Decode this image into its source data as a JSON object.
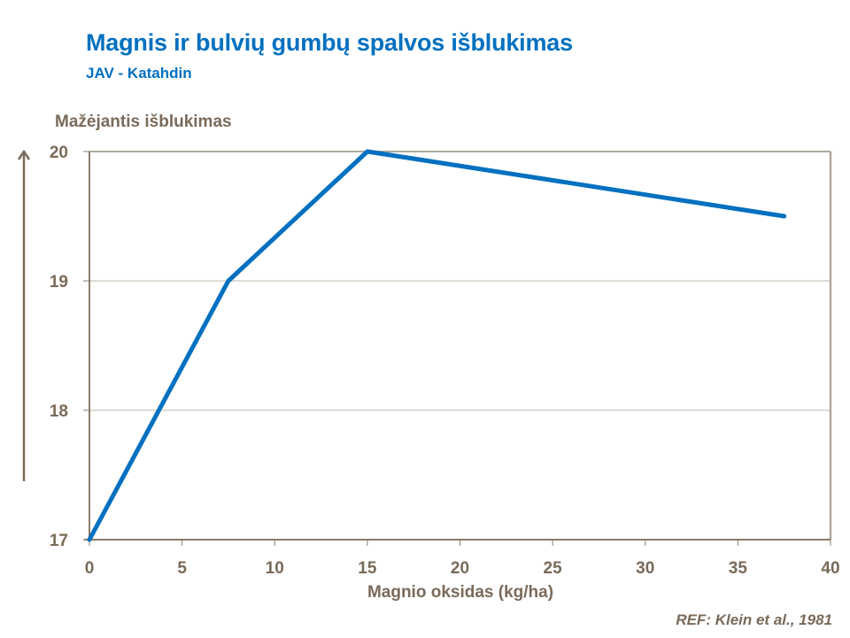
{
  "header": {
    "title": "Magnis ir bulvių gumbų spalvos išblukimas",
    "subtitle": "JAV - Katahdin"
  },
  "axes": {
    "ylabel": "Mažėjantis išblukimas",
    "xlabel": "Magnio oksidas (kg/ha)",
    "yticks": [
      "17",
      "18",
      "19",
      "20"
    ],
    "xticks": [
      "0",
      "5",
      "10",
      "15",
      "20",
      "25",
      "30",
      "35",
      "40"
    ]
  },
  "footer": {
    "reference": "REF: Klein et al., 1981"
  },
  "colors": {
    "line": "#0070c0",
    "axis": "#8b7d6b",
    "grid": "#bfb8ae",
    "text": "#7a6a5a",
    "title": "#0070c0"
  },
  "chart_data": {
    "type": "line",
    "title": "Magnis ir bulvių gumbų spalvos išblukimas",
    "subtitle": "JAV - Katahdin",
    "xlabel": "Magnio oksidas (kg/ha)",
    "ylabel": "Mažėjantis išblukimas",
    "x": [
      0,
      7.5,
      15,
      37.5
    ],
    "series": [
      {
        "name": "Katahdin",
        "values": [
          17,
          19,
          20,
          19.5
        ]
      }
    ],
    "xlim": [
      0,
      40
    ],
    "ylim": [
      17,
      20
    ],
    "xticks": [
      0,
      5,
      10,
      15,
      20,
      25,
      30,
      35,
      40
    ],
    "yticks": [
      17,
      18,
      19,
      20
    ],
    "grid": "horizontal",
    "legend": "none",
    "annotations": [
      "REF: Klein et al., 1981"
    ]
  }
}
